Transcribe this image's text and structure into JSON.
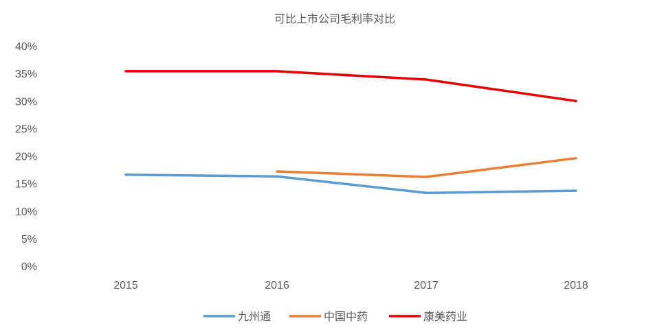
{
  "chart_data": {
    "type": "line",
    "title": "可比上市公司毛利率对比",
    "xlabel": "",
    "ylabel": "",
    "categories": [
      "2015",
      "2016",
      "2017",
      "2018"
    ],
    "ylim": [
      0,
      40
    ],
    "yticks": [
      "0%",
      "5%",
      "10%",
      "15%",
      "20%",
      "25%",
      "30%",
      "35%",
      "40%"
    ],
    "ytick_values": [
      0,
      5,
      10,
      15,
      20,
      25,
      30,
      35,
      40
    ],
    "grid": false,
    "legend_position": "bottom",
    "series": [
      {
        "name": "九州通",
        "color": "#5B9BD5",
        "values": [
          16.6,
          16.3,
          13.3,
          13.7
        ]
      },
      {
        "name": "中国中药",
        "color": "#ED7D31",
        "values": [
          null,
          17.2,
          16.2,
          19.6
        ]
      },
      {
        "name": "康美药业",
        "color": "#E60000",
        "values": [
          35.4,
          35.4,
          33.9,
          30.0
        ]
      }
    ]
  }
}
